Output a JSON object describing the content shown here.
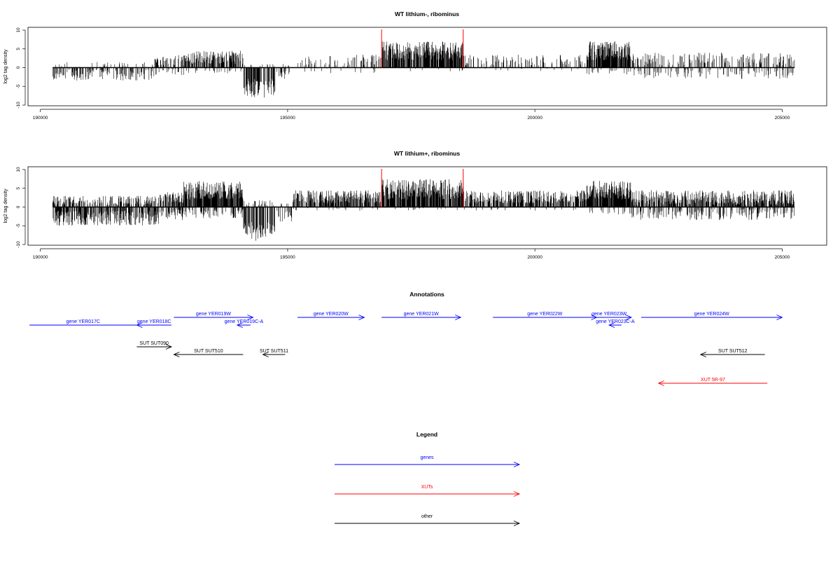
{
  "chart_data": [
    {
      "type": "bar",
      "title": "WT lithium-, ribominus",
      "xlabel": "",
      "ylabel": "log2 tag density",
      "xlim": [
        189750,
        205900
      ],
      "ylim": [
        -10,
        10
      ],
      "xticks": [
        190000,
        195000,
        200000,
        205000
      ],
      "xtick_labels": [
        "190000",
        "195000",
        "200000",
        "205000"
      ],
      "yticks": [
        10,
        5,
        0,
        -5,
        -10
      ],
      "ytick_labels": [
        "10",
        "5",
        "0",
        "-5",
        "-10"
      ],
      "data_range": [
        190250,
        205250
      ],
      "highlight_lines": [
        196900,
        198550
      ],
      "highlight_color": "#ff0000",
      "baseline": 0,
      "segments": [
        {
          "start": 190250,
          "end": 192300,
          "pos": [
            0,
            1.5
          ],
          "pos_density": 0.15,
          "neg": [
            0.5,
            3.5
          ],
          "neg_density": 0.75
        },
        {
          "start": 192300,
          "end": 192900,
          "pos": [
            0.5,
            3.5
          ],
          "pos_density": 0.35,
          "neg": [
            0.2,
            2.0
          ],
          "neg_density": 0.35
        },
        {
          "start": 192900,
          "end": 194100,
          "pos": [
            1,
            4.5
          ],
          "pos_density": 0.8,
          "neg": [
            0,
            1.5
          ],
          "neg_density": 0.2
        },
        {
          "start": 194100,
          "end": 194750,
          "pos": [
            0,
            1
          ],
          "pos_density": 0.1,
          "neg": [
            3,
            8
          ],
          "neg_density": 0.95
        },
        {
          "start": 194750,
          "end": 195200,
          "pos": [
            0,
            1
          ],
          "pos_density": 0.1,
          "neg": [
            0.5,
            3
          ],
          "neg_density": 0.3
        },
        {
          "start": 195200,
          "end": 196900,
          "pos": [
            0.5,
            3.5
          ],
          "pos_density": 0.3,
          "neg": [
            0,
            1.5
          ],
          "neg_density": 0.1
        },
        {
          "start": 196900,
          "end": 198550,
          "pos": [
            2,
            7
          ],
          "pos_density": 1.0,
          "neg": [
            0,
            1
          ],
          "neg_density": 0.1
        },
        {
          "start": 198550,
          "end": 201050,
          "pos": [
            0.5,
            3.5
          ],
          "pos_density": 0.3,
          "neg": [
            0,
            1
          ],
          "neg_density": 0.08
        },
        {
          "start": 201050,
          "end": 201950,
          "pos": [
            2,
            7
          ],
          "pos_density": 1.0,
          "neg": [
            0.5,
            2
          ],
          "neg_density": 0.15
        },
        {
          "start": 201950,
          "end": 205250,
          "pos": [
            0.5,
            4
          ],
          "pos_density": 0.35,
          "neg": [
            0.5,
            3
          ],
          "neg_density": 0.3
        }
      ]
    },
    {
      "type": "bar",
      "title": "WT lithium+, ribominus",
      "xlabel": "",
      "ylabel": "log2 tag density",
      "xlim": [
        189750,
        205900
      ],
      "ylim": [
        -10,
        10
      ],
      "xticks": [
        190000,
        195000,
        200000,
        205000
      ],
      "xtick_labels": [
        "190000",
        "195000",
        "200000",
        "205000"
      ],
      "yticks": [
        10,
        5,
        0,
        -5,
        -10
      ],
      "ytick_labels": [
        "10",
        "5",
        "0",
        "-5",
        "-10"
      ],
      "data_range": [
        190250,
        205250
      ],
      "highlight_lines": [
        196900,
        198550
      ],
      "highlight_color": "#ff0000",
      "baseline": 0,
      "segments": [
        {
          "start": 190250,
          "end": 192400,
          "pos": [
            0.5,
            3
          ],
          "pos_density": 0.6,
          "neg": [
            1,
            5
          ],
          "neg_density": 1.0
        },
        {
          "start": 192400,
          "end": 192900,
          "pos": [
            1,
            4
          ],
          "pos_density": 0.7,
          "neg": [
            0.5,
            3.5
          ],
          "neg_density": 0.7
        },
        {
          "start": 192900,
          "end": 194100,
          "pos": [
            2,
            7
          ],
          "pos_density": 1.0,
          "neg": [
            0.5,
            3
          ],
          "neg_density": 0.6
        },
        {
          "start": 194100,
          "end": 194750,
          "pos": [
            0,
            2
          ],
          "pos_density": 0.3,
          "neg": [
            4,
            9
          ],
          "neg_density": 1.0
        },
        {
          "start": 194750,
          "end": 195100,
          "pos": [
            0,
            1
          ],
          "pos_density": 0.15,
          "neg": [
            1,
            4
          ],
          "neg_density": 0.7
        },
        {
          "start": 195100,
          "end": 196900,
          "pos": [
            1,
            4.5
          ],
          "pos_density": 0.85,
          "neg": [
            0,
            1
          ],
          "neg_density": 0.1
        },
        {
          "start": 196900,
          "end": 198550,
          "pos": [
            2,
            7.5
          ],
          "pos_density": 1.0,
          "neg": [
            0,
            1
          ],
          "neg_density": 0.1
        },
        {
          "start": 198550,
          "end": 201050,
          "pos": [
            1,
            4.5
          ],
          "pos_density": 0.75,
          "neg": [
            0,
            1
          ],
          "neg_density": 0.1
        },
        {
          "start": 201050,
          "end": 201950,
          "pos": [
            2,
            7
          ],
          "pos_density": 1.0,
          "neg": [
            0.5,
            2
          ],
          "neg_density": 0.2
        },
        {
          "start": 201950,
          "end": 205250,
          "pos": [
            0.5,
            4.5
          ],
          "pos_density": 0.85,
          "neg": [
            0.5,
            3.5
          ],
          "neg_density": 0.5
        }
      ]
    }
  ],
  "annotations": {
    "title": "Annotations",
    "items": [
      {
        "label": "gene YER017C",
        "type": "gene",
        "start": 189780,
        "end": 191950,
        "direction": "none",
        "row": 1
      },
      {
        "label": "gene YER018C",
        "type": "gene",
        "start": 191950,
        "end": 192650,
        "direction": "left",
        "row": 1
      },
      {
        "label": "gene YER019W",
        "type": "gene",
        "start": 192700,
        "end": 194300,
        "direction": "right",
        "row": 0
      },
      {
        "label": "gene YER019C-A",
        "type": "gene",
        "start": 193980,
        "end": 194250,
        "direction": "left",
        "row": 1
      },
      {
        "label": "gene YER020W",
        "type": "gene",
        "start": 195200,
        "end": 196550,
        "direction": "right",
        "row": 0
      },
      {
        "label": "gene YER021W",
        "type": "gene",
        "start": 196900,
        "end": 198500,
        "direction": "right",
        "row": 0
      },
      {
        "label": "gene YER022W",
        "type": "gene",
        "start": 199150,
        "end": 201250,
        "direction": "right",
        "row": 0
      },
      {
        "label": "gene YER023W",
        "type": "gene",
        "start": 201050,
        "end": 201950,
        "direction": "right",
        "row": 0
      },
      {
        "label": "gene YER023C-A",
        "type": "gene",
        "start": 201500,
        "end": 201750,
        "direction": "left",
        "row": 1
      },
      {
        "label": "gene YER024W",
        "type": "gene",
        "start": 202150,
        "end": 205000,
        "direction": "right",
        "row": 0
      },
      {
        "label": "SUT SUT090",
        "type": "other",
        "start": 191950,
        "end": 192650,
        "direction": "right",
        "row": 2
      },
      {
        "label": "SUT SUT510",
        "type": "other",
        "start": 192700,
        "end": 194100,
        "direction": "left",
        "row": 3
      },
      {
        "label": "SUT SUT511",
        "type": "other",
        "start": 194500,
        "end": 194950,
        "direction": "left",
        "row": 3
      },
      {
        "label": "SUT SUT512",
        "type": "other",
        "start": 203350,
        "end": 204650,
        "direction": "left",
        "row": 3
      },
      {
        "label": "XUT 5R-97",
        "type": "xut",
        "start": 202500,
        "end": 204700,
        "direction": "left",
        "row": 4
      }
    ]
  },
  "legend": {
    "title": "Legend",
    "items": [
      {
        "label": "genes",
        "type": "gene"
      },
      {
        "label": "XUTs",
        "type": "xut"
      },
      {
        "label": "other",
        "type": "other"
      }
    ]
  },
  "colors": {
    "gene": "#0000ff",
    "xut": "#ff0000",
    "other": "#000000",
    "axis": "#000000",
    "bars": "#000000",
    "highlight": "#ff0000"
  }
}
